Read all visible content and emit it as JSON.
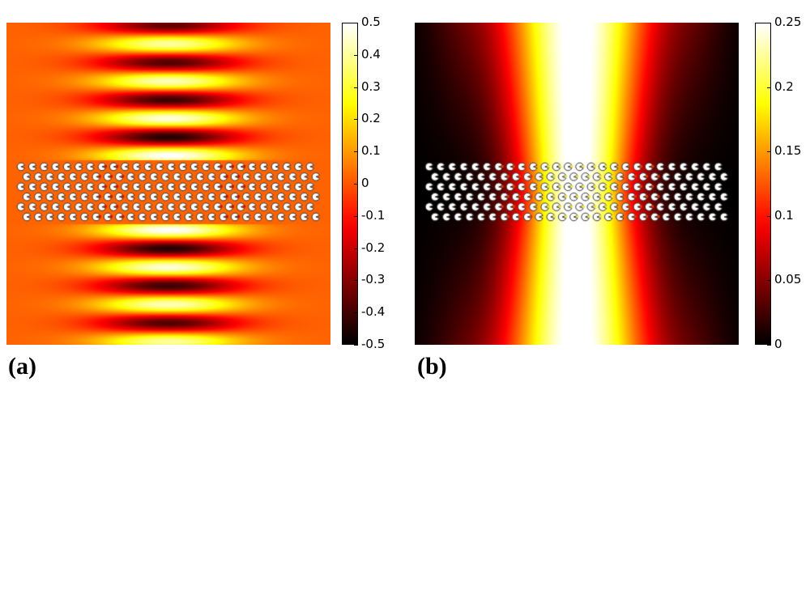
{
  "chart_data": [
    {
      "type": "heatmap",
      "panel_label": "(a)",
      "colormap": "hot",
      "colorbar": {
        "range": [
          -0.5,
          0.5
        ],
        "ticks": [
          "0.5",
          "0.4",
          "0.3",
          "0.2",
          "0.1",
          "0",
          "-0.1",
          "-0.2",
          "-0.3",
          "-0.4",
          "-0.5"
        ],
        "tick_values": [
          0.5,
          0.4,
          0.3,
          0.2,
          0.1,
          0,
          -0.1,
          -0.2,
          -0.3,
          -0.4,
          -0.5
        ]
      },
      "field": "oscillating field, standing-wave bands above and below a photonic-crystal slab",
      "background_value": 0.02
    },
    {
      "type": "heatmap",
      "panel_label": "(b)",
      "colormap": "hot",
      "colorbar": {
        "range": [
          0,
          0.25
        ],
        "ticks": [
          "0.25",
          "0.2",
          "0.15",
          "0.1",
          "0.05",
          "0"
        ],
        "tick_values": [
          0.25,
          0.2,
          0.15,
          0.1,
          0.05,
          0
        ]
      },
      "field": "intensity, bright vertical beam through slab center",
      "background_value": 0
    }
  ],
  "colors": {
    "background": "#ffffff",
    "text": "#000000"
  }
}
